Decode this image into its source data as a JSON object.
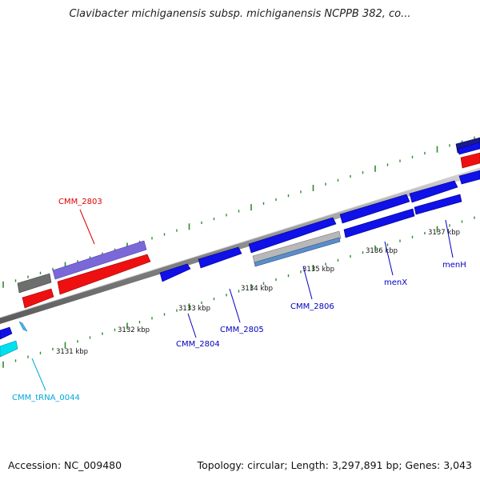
{
  "title": "Clavibacter michiganensis subsp. michiganensis NCPPB 382, co...",
  "footer": {
    "accession": "Accession: NC_009480",
    "topology": "Topology: circular; Length: 3,297,891 bp; Genes: 3,043"
  },
  "colors": {
    "backbone": "#9a9a9a",
    "ticks": "#2e8b2e",
    "gene_blue": "#1010e8",
    "gene_red": "#ee1010",
    "gene_violet": "#7b68d8",
    "gene_gray": "#6e6e6e",
    "gene_cyan": "#00e0f0",
    "label_blue": "#0000c0",
    "label_red": "#dd0000",
    "label_cyan": "#00a8d8"
  },
  "tick_labels": [
    "3131 kbp",
    "3132 kbp",
    "3133 kbp",
    "3134 kbp",
    "3135 kbp",
    "3136 kbp",
    "3137 kbp"
  ],
  "gene_labels": [
    {
      "name": "CMM_2803",
      "color": "red"
    },
    {
      "name": "CMM_tRNA_0044",
      "color": "cyan"
    },
    {
      "name": "CMM_2804",
      "color": "blue"
    },
    {
      "name": "CMM_2805",
      "color": "blue"
    },
    {
      "name": "CMM_2806",
      "color": "blue"
    },
    {
      "name": "menX",
      "color": "blue"
    },
    {
      "name": "menH",
      "color": "blue"
    }
  ]
}
